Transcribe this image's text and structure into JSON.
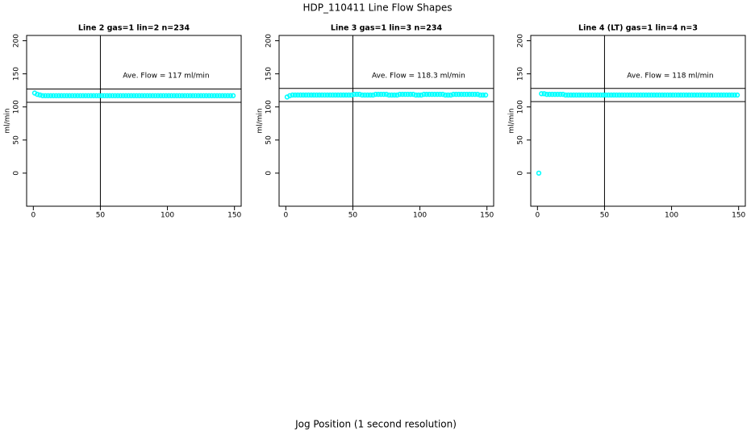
{
  "title": "HDP_110411  Line Flow Shapes",
  "x_label": "Jog Position (1 second resolution)",
  "chart_data": [
    {
      "type": "scatter",
      "title": "Line 2 gas=1 lin=2 n=234",
      "y_label": "ml/min",
      "annotation": "Ave. Flow =  117  ml/min",
      "color": "#00ffff",
      "xlim": [
        -5,
        155
      ],
      "ylim": [
        -50,
        208
      ],
      "xticks": [
        0,
        50,
        100,
        150
      ],
      "yticks": [
        0,
        50,
        100,
        150,
        200
      ],
      "hlines": [
        107,
        127
      ],
      "vline": 50,
      "x": [
        1,
        3,
        5,
        7,
        9,
        11,
        13,
        15,
        17,
        19,
        21,
        23,
        25,
        27,
        29,
        31,
        33,
        35,
        37,
        39,
        41,
        43,
        45,
        47,
        49,
        51,
        53,
        55,
        57,
        59,
        61,
        63,
        65,
        67,
        69,
        71,
        73,
        75,
        77,
        79,
        81,
        83,
        85,
        87,
        89,
        91,
        93,
        95,
        97,
        99,
        101,
        103,
        105,
        107,
        109,
        111,
        113,
        115,
        117,
        119,
        121,
        123,
        125,
        127,
        129,
        131,
        133,
        135,
        137,
        139,
        141,
        143,
        145,
        147,
        149
      ],
      "values": [
        121,
        119,
        118,
        117,
        117,
        117,
        117,
        117,
        117,
        117,
        117,
        117,
        117,
        117,
        117,
        117,
        117,
        117,
        117,
        117,
        117,
        117,
        117,
        117,
        117,
        117,
        117,
        117,
        117,
        117,
        117,
        117,
        117,
        117,
        117,
        117,
        117,
        117,
        117,
        117,
        117,
        117,
        117,
        117,
        117,
        117,
        117,
        117,
        117,
        117,
        117,
        117,
        117,
        117,
        117,
        117,
        117,
        117,
        117,
        117,
        117,
        117,
        117,
        117,
        117,
        117,
        117,
        117,
        117,
        117,
        117,
        117,
        117,
        117,
        117
      ]
    },
    {
      "type": "scatter",
      "title": "Line 3 gas=1 lin=3 n=234",
      "y_label": "ml/min",
      "annotation": "Ave. Flow =  118.3  ml/min",
      "color": "#00ffff",
      "xlim": [
        -5,
        155
      ],
      "ylim": [
        -50,
        208
      ],
      "xticks": [
        0,
        50,
        100,
        150
      ],
      "yticks": [
        0,
        50,
        100,
        150,
        200
      ],
      "hlines": [
        108,
        128
      ],
      "vline": 50,
      "x": [
        1,
        3,
        5,
        7,
        9,
        11,
        13,
        15,
        17,
        19,
        21,
        23,
        25,
        27,
        29,
        31,
        33,
        35,
        37,
        39,
        41,
        43,
        45,
        47,
        49,
        51,
        53,
        55,
        57,
        59,
        61,
        63,
        65,
        67,
        69,
        71,
        73,
        75,
        77,
        79,
        81,
        83,
        85,
        87,
        89,
        91,
        93,
        95,
        97,
        99,
        101,
        103,
        105,
        107,
        109,
        111,
        113,
        115,
        117,
        119,
        121,
        123,
        125,
        127,
        129,
        131,
        133,
        135,
        137,
        139,
        141,
        143,
        145,
        147,
        149
      ],
      "values": [
        115,
        117,
        118,
        118,
        118,
        118,
        118,
        118,
        118,
        118,
        118,
        118,
        118,
        118,
        118,
        118,
        118,
        118,
        118,
        118,
        118,
        118,
        118,
        118,
        118,
        119,
        119,
        119,
        118,
        118,
        118,
        118,
        118,
        119,
        119,
        119,
        119,
        119,
        118,
        118,
        118,
        118,
        119,
        119,
        119,
        119,
        119,
        119,
        118,
        118,
        118,
        119,
        119,
        119,
        119,
        119,
        119,
        119,
        119,
        118,
        118,
        118,
        119,
        119,
        119,
        119,
        119,
        119,
        119,
        119,
        119,
        119,
        118,
        118,
        118
      ]
    },
    {
      "type": "scatter",
      "title": "Line 4 (LT) gas=1 lin=4 n=3",
      "y_label": "ml/min",
      "annotation": "Ave. Flow =  118  ml/min",
      "color": "#00ffff",
      "xlim": [
        -5,
        155
      ],
      "ylim": [
        -50,
        208
      ],
      "xticks": [
        0,
        50,
        100,
        150
      ],
      "yticks": [
        0,
        50,
        100,
        150,
        200
      ],
      "hlines": [
        108,
        128
      ],
      "vline": 50,
      "x": [
        1,
        3,
        5,
        7,
        9,
        11,
        13,
        15,
        17,
        19,
        21,
        23,
        25,
        27,
        29,
        31,
        33,
        35,
        37,
        39,
        41,
        43,
        45,
        47,
        49,
        51,
        53,
        55,
        57,
        59,
        61,
        63,
        65,
        67,
        69,
        71,
        73,
        75,
        77,
        79,
        81,
        83,
        85,
        87,
        89,
        91,
        93,
        95,
        97,
        99,
        101,
        103,
        105,
        107,
        109,
        111,
        113,
        115,
        117,
        119,
        121,
        123,
        125,
        127,
        129,
        131,
        133,
        135,
        137,
        139,
        141,
        143,
        145,
        147,
        149
      ],
      "values": [
        0,
        120,
        120,
        119,
        119,
        119,
        119,
        119,
        119,
        119,
        118,
        118,
        118,
        118,
        118,
        118,
        118,
        118,
        118,
        118,
        118,
        118,
        118,
        118,
        118,
        118,
        118,
        118,
        118,
        118,
        118,
        118,
        118,
        118,
        118,
        118,
        118,
        118,
        118,
        118,
        118,
        118,
        118,
        118,
        118,
        118,
        118,
        118,
        118,
        118,
        118,
        118,
        118,
        118,
        118,
        118,
        118,
        118,
        118,
        118,
        118,
        118,
        118,
        118,
        118,
        118,
        118,
        118,
        118,
        118,
        118,
        118,
        118,
        118,
        118
      ]
    }
  ]
}
